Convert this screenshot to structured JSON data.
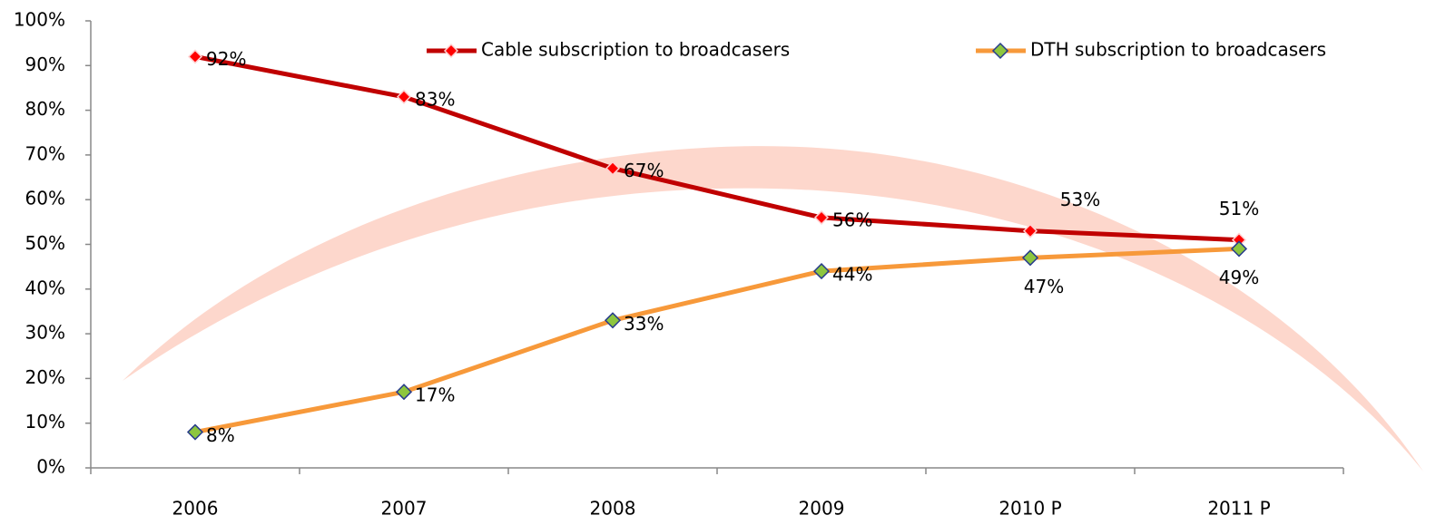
{
  "chart_data": {
    "type": "line",
    "categories": [
      "2006",
      "2007",
      "2008",
      "2009",
      "2010 P",
      "2011 P"
    ],
    "series": [
      {
        "name": "Cable subscription to broadcasers",
        "color": "#c00000",
        "marker_color": "#ff0000",
        "values": [
          92,
          83,
          67,
          56,
          53,
          51
        ],
        "value_labels": [
          "92%",
          "83%",
          "67%",
          "56%",
          "53%",
          "51%"
        ]
      },
      {
        "name": "DTH subscription to broadcasers",
        "color": "#f7993a",
        "marker_color": "#8dc63f",
        "values": [
          8,
          17,
          33,
          44,
          47,
          49
        ],
        "value_labels": [
          "8%",
          "17%",
          "33%",
          "44%",
          "47%",
          "49%"
        ]
      }
    ],
    "ylim": [
      0,
      100
    ],
    "yticks": [
      {
        "value": 0,
        "label": "0%"
      },
      {
        "value": 10,
        "label": "10%"
      },
      {
        "value": 20,
        "label": "20%"
      },
      {
        "value": 30,
        "label": "30%"
      },
      {
        "value": 40,
        "label": "40%"
      },
      {
        "value": 50,
        "label": "50%"
      },
      {
        "value": 60,
        "label": "60%"
      },
      {
        "value": 70,
        "label": "70%"
      },
      {
        "value": 80,
        "label": "80%"
      },
      {
        "value": 90,
        "label": "90%"
      },
      {
        "value": 100,
        "label": "100%"
      }
    ],
    "legend": "top"
  }
}
